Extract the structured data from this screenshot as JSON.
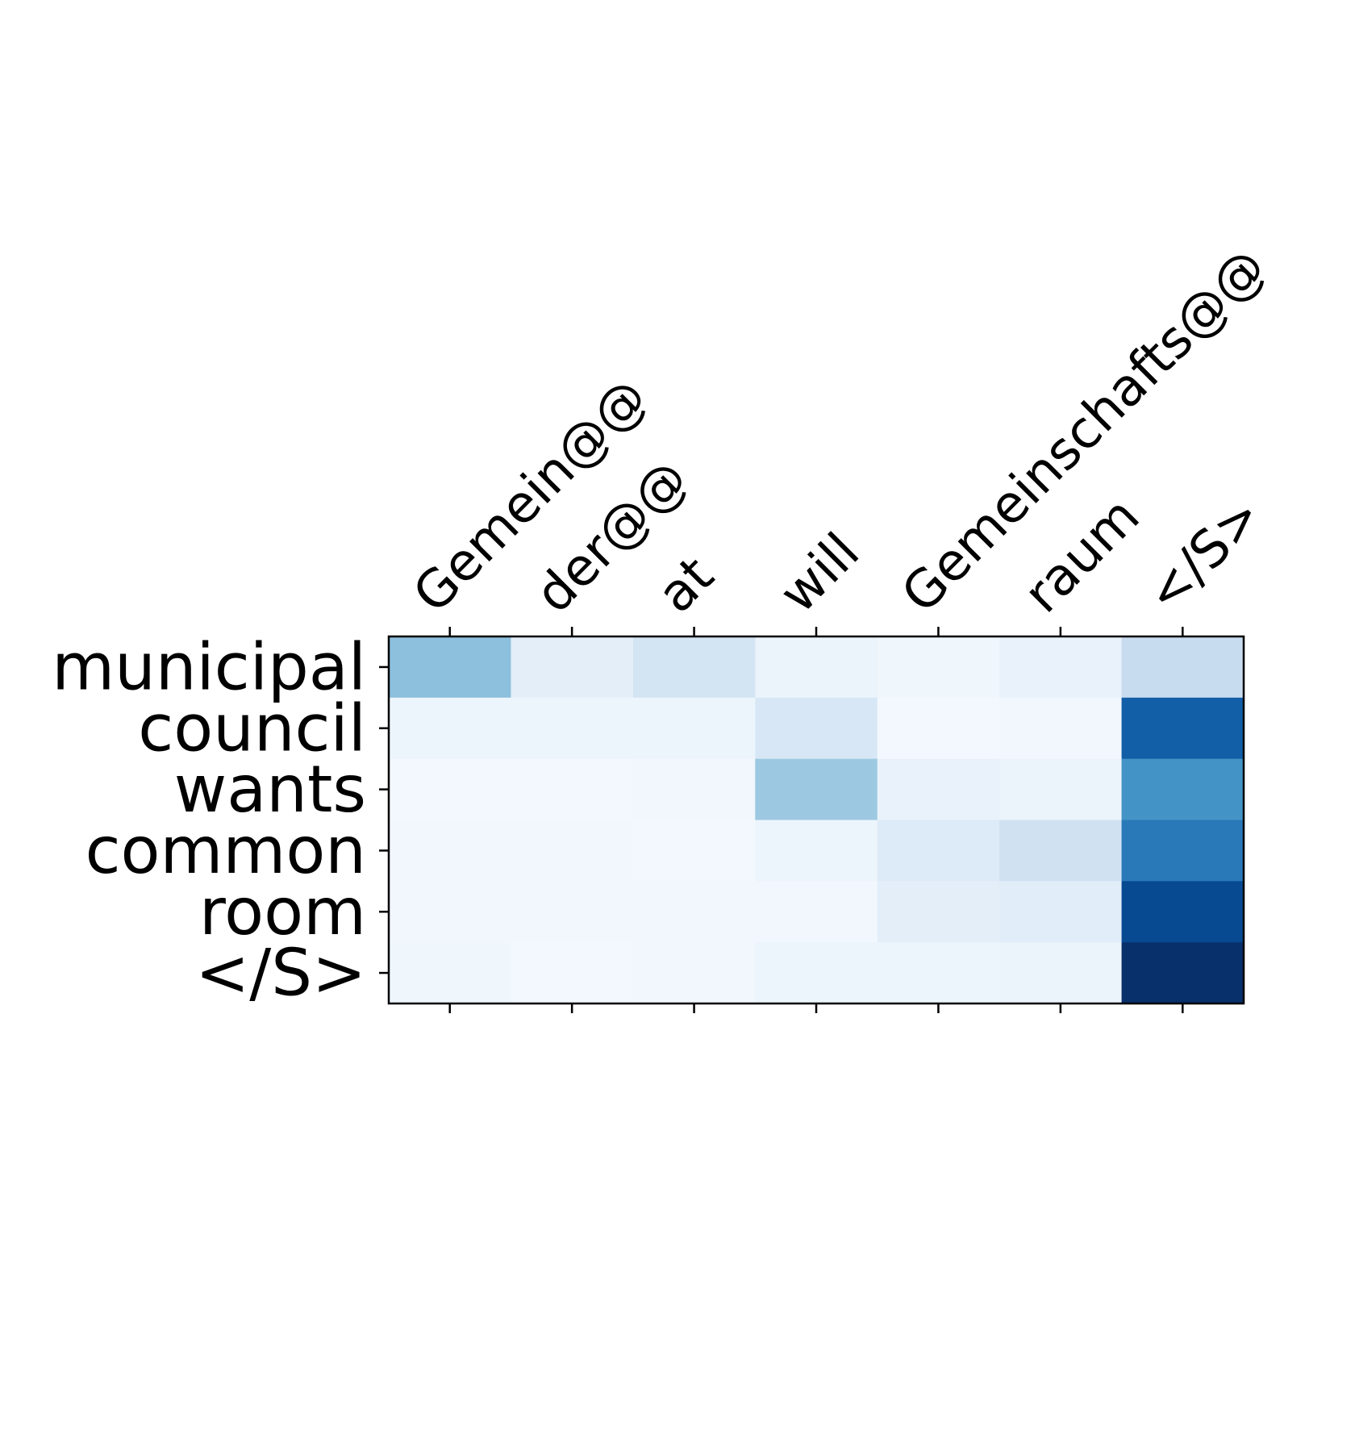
{
  "chart_data": {
    "type": "heatmap",
    "colormap": "Blues",
    "x_labels": [
      "Gemein@@",
      "der@@",
      "at",
      "will",
      "Gemeinschafts@@",
      "raum",
      "</S>"
    ],
    "y_labels": [
      "municipal",
      "council",
      "wants",
      "common",
      "room",
      "</S>"
    ],
    "values": [
      [
        0.42,
        0.1,
        0.18,
        0.06,
        0.04,
        0.07,
        0.24
      ],
      [
        0.05,
        0.05,
        0.05,
        0.16,
        0.02,
        0.03,
        0.82
      ],
      [
        0.02,
        0.02,
        0.03,
        0.38,
        0.07,
        0.06,
        0.62
      ],
      [
        0.03,
        0.03,
        0.02,
        0.05,
        0.13,
        0.2,
        0.72
      ],
      [
        0.03,
        0.03,
        0.03,
        0.03,
        0.1,
        0.11,
        0.9
      ],
      [
        0.04,
        0.02,
        0.03,
        0.05,
        0.05,
        0.06,
        1.0
      ]
    ],
    "value_range": [
      0,
      1
    ],
    "x_tick_position": "top",
    "x_tick_rotation": 45,
    "grid": false,
    "legend": "none"
  }
}
